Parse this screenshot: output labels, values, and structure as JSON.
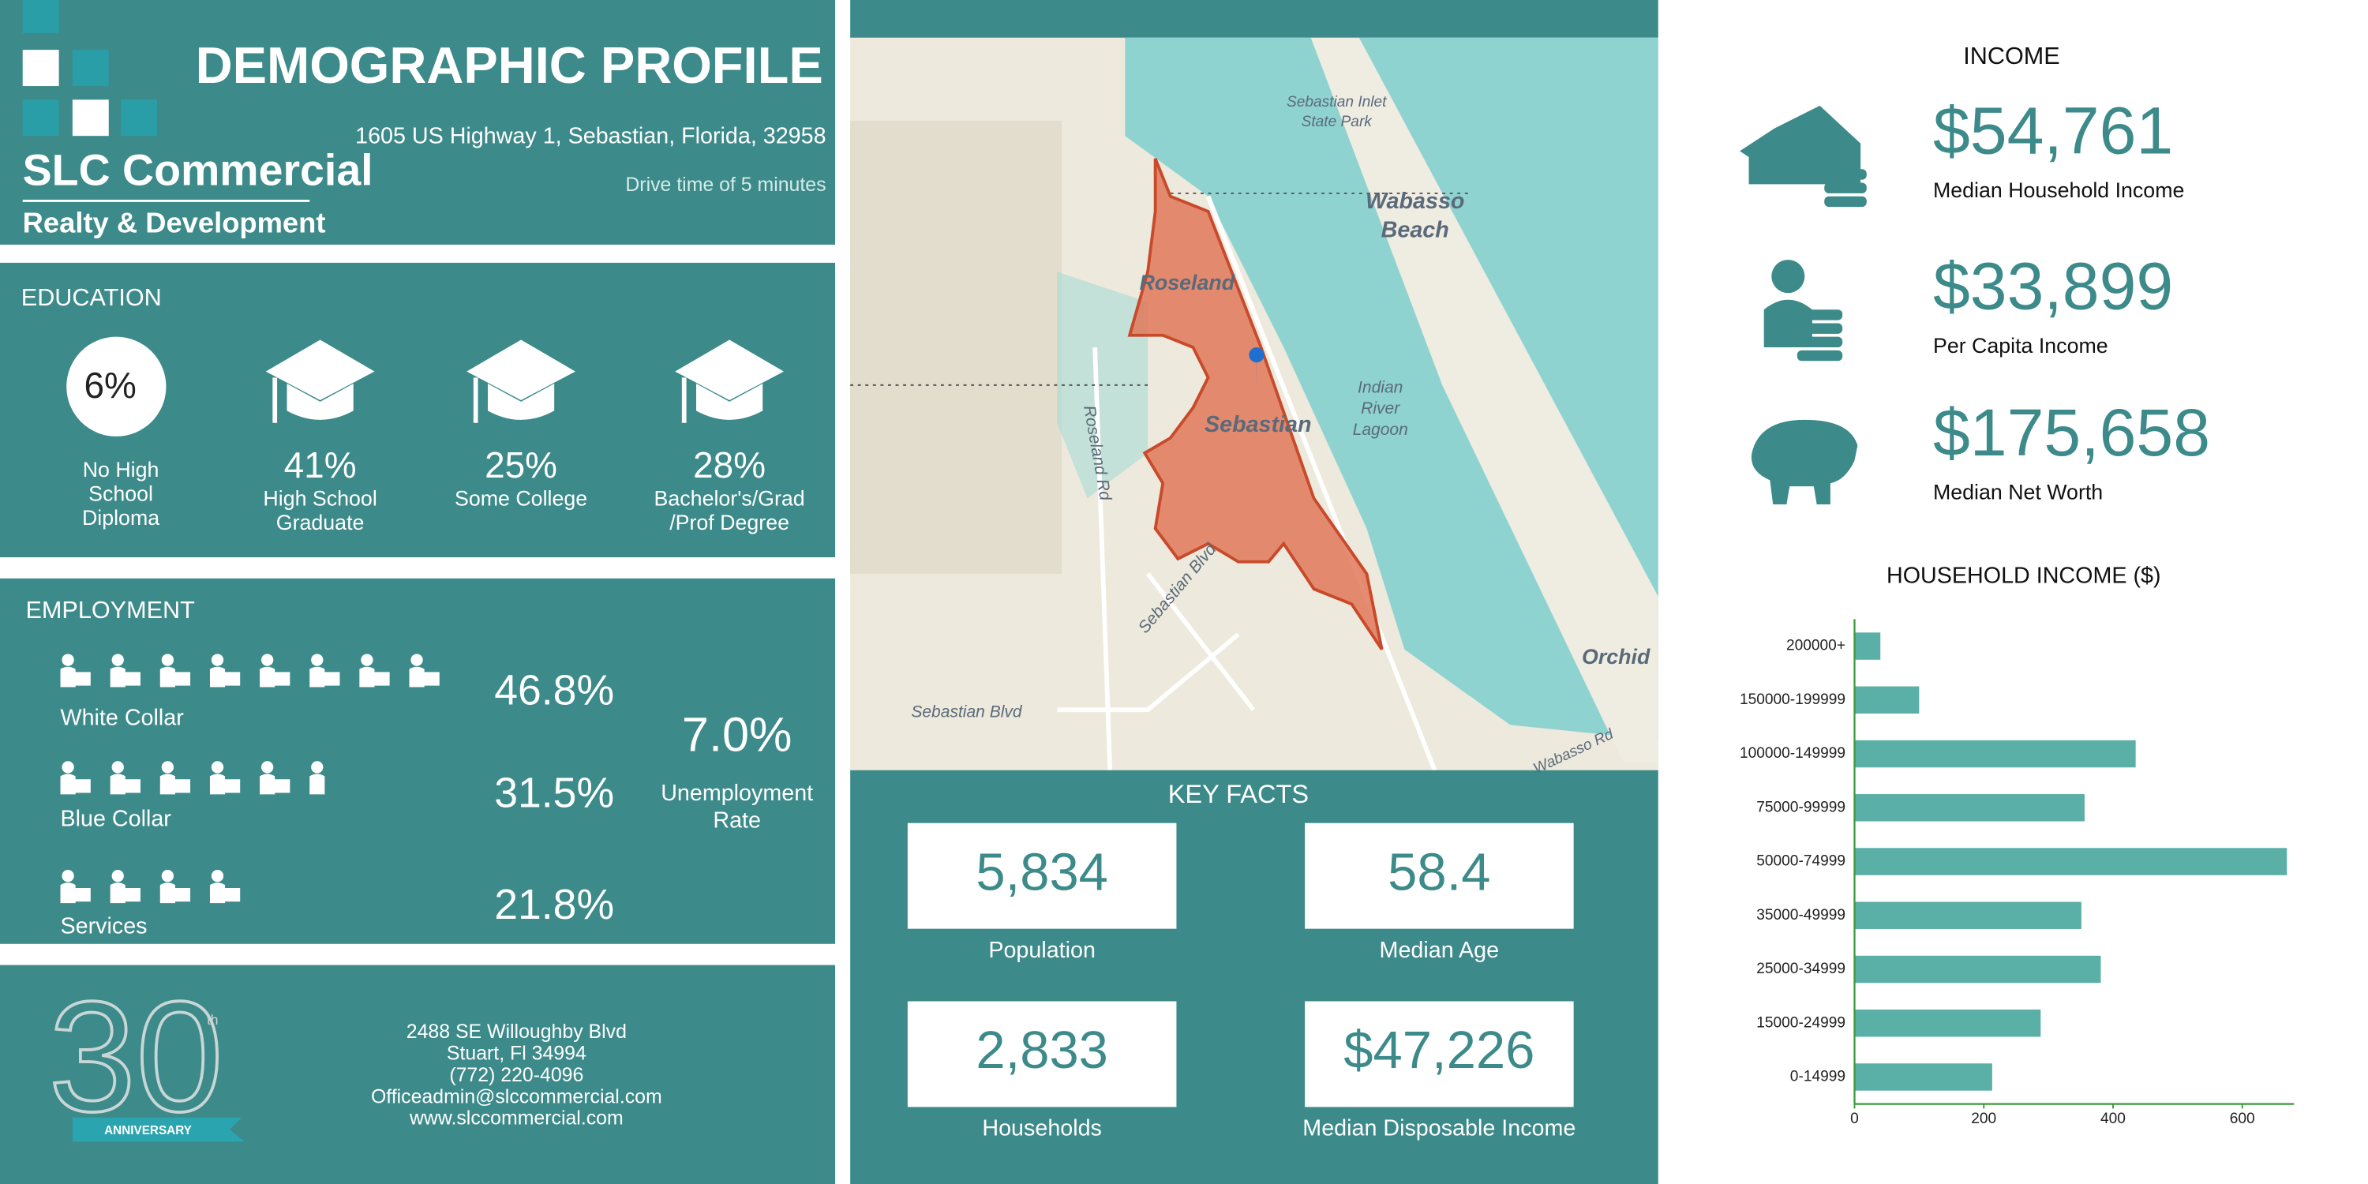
{
  "header": {
    "title": "DEMOGRAPHIC PROFILE",
    "address": "1605 US Highway 1, Sebastian, Florida, 32958",
    "drive_time": "Drive time of 5 minutes",
    "logo": {
      "name": "SLC Commercial",
      "tagline": "Realty & Development"
    }
  },
  "education": {
    "title": "EDUCATION",
    "items": [
      {
        "value": "6%",
        "label_lines": [
          "No High",
          "School",
          "Diploma"
        ]
      },
      {
        "value": "41%",
        "label_lines": [
          "High School",
          "Graduate"
        ]
      },
      {
        "value": "25%",
        "label_lines": [
          "Some College"
        ]
      },
      {
        "value": "28%",
        "label_lines": [
          "Bachelor's/Grad",
          "/Prof Degree"
        ]
      }
    ]
  },
  "employment": {
    "title": "EMPLOYMENT",
    "items": [
      {
        "label": "White Collar",
        "value": "46.8%"
      },
      {
        "label": "Blue Collar",
        "value": "31.5%"
      },
      {
        "label": "Services",
        "value": "21.8%"
      }
    ],
    "unemployment": {
      "value": "7.0%",
      "label_lines": [
        "Unemployment",
        "Rate"
      ]
    }
  },
  "contact": {
    "anniversary": {
      "number": "30",
      "suffix": "th",
      "label": "ANNIVERSARY"
    },
    "lines": [
      "2488 SE Willoughby Blvd",
      "Stuart, Fl 34994",
      "(772) 220-4096",
      "Officeadmin@slccommercial.com",
      "www.slccommercial.com"
    ]
  },
  "map": {
    "labels": [
      "Sebastian Inlet",
      "State Park",
      "Wabasso",
      "Beach",
      "Roseland",
      "Sebastian",
      "Indian",
      "River",
      "Lagoon",
      "Roseland Rd",
      "Sebastian Blvd",
      "Sebastian Blvd",
      "Orchid",
      "Wabasso Rd"
    ]
  },
  "key_facts": {
    "title": "KEY FACTS",
    "items": [
      {
        "value": "5,834",
        "label": "Population"
      },
      {
        "value": "58.4",
        "label": "Median Age"
      },
      {
        "value": "2,833",
        "label": "Households"
      },
      {
        "value": "$47,226",
        "label": "Median Disposable Income"
      }
    ]
  },
  "income": {
    "title": "INCOME",
    "items": [
      {
        "value": "$54,761",
        "label": "Median Household Income"
      },
      {
        "value": "$33,899",
        "label": "Per Capita Income"
      },
      {
        "value": "$175,658",
        "label": "Median Net Worth"
      }
    ]
  },
  "chart_data": {
    "type": "bar",
    "orientation": "horizontal",
    "title": "HOUSEHOLD INCOME ($)",
    "categories": [
      "200000+",
      "150000-199999",
      "100000-149999",
      "75000-99999",
      "50000-74999",
      "35000-49999",
      "25000-34999",
      "15000-24999",
      "0-14999"
    ],
    "values": [
      40,
      100,
      435,
      356,
      669,
      351,
      381,
      288,
      213
    ],
    "color": "#5aafa6",
    "axis_color": "#3a9a3a",
    "xlim": [
      0,
      680
    ],
    "xticks": [
      0,
      200,
      400,
      600
    ]
  }
}
